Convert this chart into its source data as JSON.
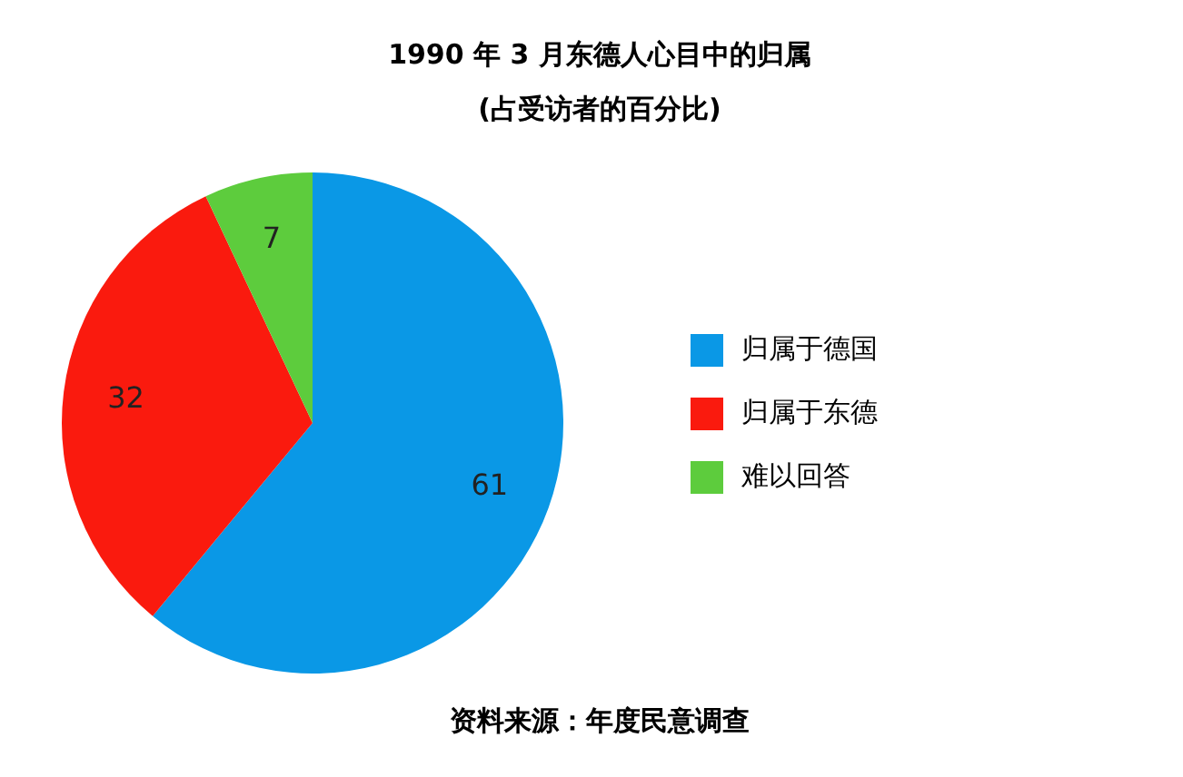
{
  "chart_data": {
    "type": "pie",
    "title": "1990 年 3 月东德人心目中的归属",
    "subtitle": "(占受访者的百分比)",
    "categories": [
      "归属于德国",
      "归属于东德",
      "难以回答"
    ],
    "values": [
      61,
      32,
      7
    ],
    "colors": [
      "#0a98e6",
      "#fa1a0e",
      "#5dcc3d"
    ],
    "data_labels": true,
    "legend": "right",
    "annotations": [
      "资料来源：年度民意调查"
    ]
  }
}
